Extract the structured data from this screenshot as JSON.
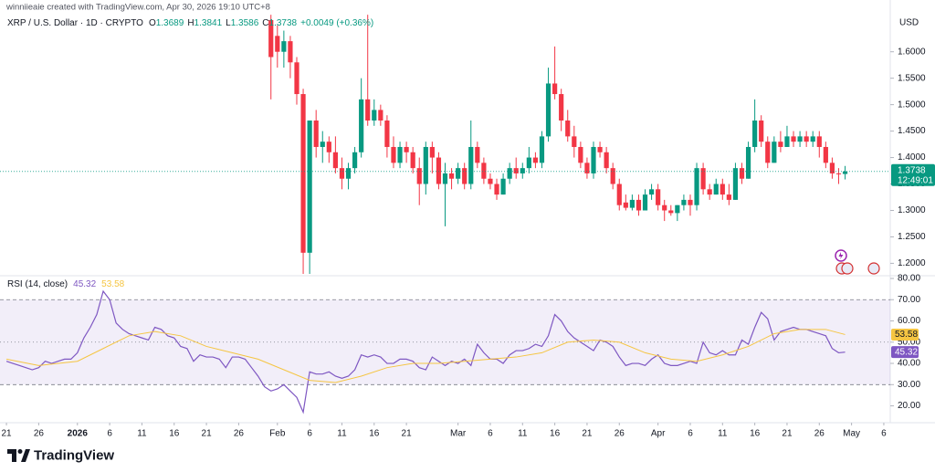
{
  "header": {
    "credit": "winniieaie created with TradingView.com, Apr 30, 2026 19:10 UTC+8"
  },
  "footer": {
    "brand": "TradingView"
  },
  "chart_data": [
    {
      "type": "candlestick",
      "title": "XRP / U.S. Dollar · 1D · CRYPTO",
      "ohlc_labels": [
        "O",
        "H",
        "L",
        "C"
      ],
      "change_label": "+0.0049 (+0.36%)",
      "currency": "USD",
      "countdown": "12:49:01",
      "up_color": "#089981",
      "down_color": "#f23645",
      "last_price_line": true,
      "xlim": [
        "2025-12-20",
        "2026-05-07"
      ],
      "ylim": [
        1.18,
        1.672
      ],
      "yticks": [
        {
          "value": 1.2,
          "label": "1.2000"
        },
        {
          "value": 1.25,
          "label": "1.2500"
        },
        {
          "value": 1.3,
          "label": "1.3000"
        },
        {
          "value": 1.35,
          "label": "1.3500"
        },
        {
          "value": 1.4,
          "label": "1.4000"
        },
        {
          "value": 1.45,
          "label": "1.4500"
        },
        {
          "value": 1.5,
          "label": "1.5000"
        },
        {
          "value": 1.55,
          "label": "1.5500"
        },
        {
          "value": 1.6,
          "label": "1.6000"
        }
      ],
      "x": [
        "2026-01-31",
        "2026-02-01",
        "2026-02-02",
        "2026-02-03",
        "2026-02-04",
        "2026-02-05",
        "2026-02-06",
        "2026-02-07",
        "2026-02-08",
        "2026-02-09",
        "2026-02-10",
        "2026-02-11",
        "2026-02-12",
        "2026-02-13",
        "2026-02-14",
        "2026-02-15",
        "2026-02-16",
        "2026-02-17",
        "2026-02-18",
        "2026-02-19",
        "2026-02-20",
        "2026-02-21",
        "2026-02-22",
        "2026-02-23",
        "2026-02-24",
        "2026-02-25",
        "2026-02-26",
        "2026-02-27",
        "2026-02-28",
        "2026-03-01",
        "2026-03-02",
        "2026-03-03",
        "2026-03-04",
        "2026-03-05",
        "2026-03-06",
        "2026-03-07",
        "2026-03-08",
        "2026-03-09",
        "2026-03-10",
        "2026-03-11",
        "2026-03-12",
        "2026-03-13",
        "2026-03-14",
        "2026-03-15",
        "2026-03-16",
        "2026-03-17",
        "2026-03-18",
        "2026-03-19",
        "2026-03-20",
        "2026-03-21",
        "2026-03-22",
        "2026-03-23",
        "2026-03-24",
        "2026-03-25",
        "2026-03-26",
        "2026-03-27",
        "2026-03-28",
        "2026-03-29",
        "2026-03-30",
        "2026-03-31",
        "2026-04-01",
        "2026-04-02",
        "2026-04-03",
        "2026-04-04",
        "2026-04-05",
        "2026-04-06",
        "2026-04-07",
        "2026-04-08",
        "2026-04-09",
        "2026-04-10",
        "2026-04-11",
        "2026-04-12",
        "2026-04-13",
        "2026-04-14",
        "2026-04-15",
        "2026-04-16",
        "2026-04-17",
        "2026-04-18",
        "2026-04-19",
        "2026-04-20",
        "2026-04-21",
        "2026-04-22",
        "2026-04-23",
        "2026-04-24",
        "2026-04-25",
        "2026-04-26",
        "2026-04-27",
        "2026-04-28",
        "2026-04-29",
        "2026-04-30"
      ],
      "open": [
        1.66,
        1.63,
        1.6,
        1.62,
        1.58,
        1.52,
        1.22,
        1.47,
        1.42,
        1.43,
        1.41,
        1.38,
        1.36,
        1.38,
        1.41,
        1.51,
        1.47,
        1.49,
        1.47,
        1.42,
        1.39,
        1.42,
        1.41,
        1.38,
        1.35,
        1.42,
        1.4,
        1.35,
        1.37,
        1.36,
        1.38,
        1.35,
        1.42,
        1.39,
        1.36,
        1.35,
        1.33,
        1.36,
        1.38,
        1.37,
        1.38,
        1.4,
        1.39,
        1.44,
        1.54,
        1.52,
        1.47,
        1.44,
        1.42,
        1.39,
        1.37,
        1.42,
        1.41,
        1.38,
        1.35,
        1.315,
        1.305,
        1.32,
        1.3,
        1.33,
        1.34,
        1.31,
        1.3,
        1.295,
        1.31,
        1.32,
        1.31,
        1.38,
        1.34,
        1.33,
        1.35,
        1.33,
        1.32,
        1.38,
        1.36,
        1.42,
        1.47,
        1.43,
        1.39,
        1.43,
        1.42,
        1.44,
        1.43,
        1.44,
        1.43,
        1.44,
        1.42,
        1.39,
        1.37,
        1.3689
      ],
      "high": [
        1.67,
        1.65,
        1.64,
        1.63,
        1.59,
        1.53,
        1.47,
        1.49,
        1.45,
        1.44,
        1.44,
        1.4,
        1.39,
        1.42,
        1.55,
        1.67,
        1.51,
        1.5,
        1.48,
        1.44,
        1.43,
        1.43,
        1.42,
        1.4,
        1.43,
        1.43,
        1.41,
        1.39,
        1.38,
        1.39,
        1.39,
        1.47,
        1.43,
        1.4,
        1.37,
        1.36,
        1.37,
        1.39,
        1.4,
        1.39,
        1.42,
        1.41,
        1.45,
        1.57,
        1.61,
        1.53,
        1.49,
        1.46,
        1.43,
        1.4,
        1.43,
        1.43,
        1.42,
        1.39,
        1.36,
        1.33,
        1.33,
        1.33,
        1.34,
        1.35,
        1.35,
        1.32,
        1.31,
        1.31,
        1.33,
        1.33,
        1.39,
        1.39,
        1.35,
        1.36,
        1.36,
        1.35,
        1.39,
        1.39,
        1.43,
        1.51,
        1.48,
        1.44,
        1.44,
        1.45,
        1.46,
        1.45,
        1.45,
        1.45,
        1.45,
        1.45,
        1.43,
        1.4,
        1.38,
        1.3841
      ],
      "low": [
        1.51,
        1.57,
        1.57,
        1.55,
        1.5,
        1.18,
        1.18,
        1.4,
        1.39,
        1.39,
        1.37,
        1.34,
        1.34,
        1.37,
        1.4,
        1.46,
        1.46,
        1.46,
        1.4,
        1.38,
        1.38,
        1.39,
        1.37,
        1.31,
        1.33,
        1.37,
        1.34,
        1.27,
        1.34,
        1.35,
        1.34,
        1.34,
        1.38,
        1.35,
        1.34,
        1.32,
        1.33,
        1.35,
        1.36,
        1.36,
        1.37,
        1.38,
        1.38,
        1.43,
        1.51,
        1.45,
        1.43,
        1.4,
        1.38,
        1.36,
        1.36,
        1.4,
        1.37,
        1.34,
        1.3,
        1.3,
        1.3,
        1.29,
        1.3,
        1.32,
        1.3,
        1.28,
        1.29,
        1.28,
        1.3,
        1.29,
        1.3,
        1.33,
        1.32,
        1.33,
        1.32,
        1.31,
        1.32,
        1.35,
        1.36,
        1.41,
        1.42,
        1.38,
        1.39,
        1.41,
        1.42,
        1.42,
        1.42,
        1.42,
        1.42,
        1.4,
        1.38,
        1.36,
        1.35,
        1.3586
      ],
      "close": [
        1.59,
        1.6,
        1.62,
        1.58,
        1.52,
        1.22,
        1.47,
        1.42,
        1.43,
        1.41,
        1.38,
        1.36,
        1.38,
        1.41,
        1.51,
        1.47,
        1.49,
        1.47,
        1.42,
        1.39,
        1.42,
        1.41,
        1.38,
        1.35,
        1.42,
        1.4,
        1.35,
        1.37,
        1.36,
        1.38,
        1.35,
        1.42,
        1.39,
        1.36,
        1.35,
        1.33,
        1.36,
        1.38,
        1.37,
        1.38,
        1.4,
        1.39,
        1.44,
        1.54,
        1.52,
        1.47,
        1.44,
        1.42,
        1.39,
        1.37,
        1.42,
        1.41,
        1.38,
        1.35,
        1.31,
        1.305,
        1.32,
        1.3,
        1.33,
        1.34,
        1.31,
        1.3,
        1.295,
        1.31,
        1.32,
        1.31,
        1.38,
        1.34,
        1.33,
        1.35,
        1.33,
        1.32,
        1.38,
        1.36,
        1.42,
        1.47,
        1.43,
        1.39,
        1.43,
        1.42,
        1.44,
        1.43,
        1.44,
        1.43,
        1.44,
        1.42,
        1.39,
        1.37,
        1.3689,
        1.3738
      ]
    },
    {
      "type": "line",
      "title": "RSI (14, close)",
      "xlim": [
        "2025-12-20",
        "2026-05-07"
      ],
      "ylim": [
        12.5,
        80
      ],
      "band": [
        30,
        70
      ],
      "midline": 50,
      "band_color": "#7e57c2",
      "yticks": [
        {
          "value": 20,
          "label": "20.00"
        },
        {
          "value": 30,
          "label": "30.00"
        },
        {
          "value": 40,
          "label": "40.00"
        },
        {
          "value": 50,
          "label": "50.00"
        },
        {
          "value": 60,
          "label": "60.00"
        },
        {
          "value": 70,
          "label": "70.00"
        },
        {
          "value": 80,
          "label": "80.00"
        }
      ],
      "xticks": [
        {
          "value": "2025-12-21",
          "label": "21"
        },
        {
          "value": "2025-12-26",
          "label": "26"
        },
        {
          "value": "2026-01-01",
          "label": "2026"
        },
        {
          "value": "2026-01-06",
          "label": "6"
        },
        {
          "value": "2026-01-11",
          "label": "11"
        },
        {
          "value": "2026-01-16",
          "label": "16"
        },
        {
          "value": "2026-01-21",
          "label": "21"
        },
        {
          "value": "2026-01-26",
          "label": "26"
        },
        {
          "value": "2026-02-01",
          "label": "Feb"
        },
        {
          "value": "2026-02-06",
          "label": "6"
        },
        {
          "value": "2026-02-11",
          "label": "11"
        },
        {
          "value": "2026-02-16",
          "label": "16"
        },
        {
          "value": "2026-02-21",
          "label": "21"
        },
        {
          "value": "2026-03-01",
          "label": "Mar"
        },
        {
          "value": "2026-03-06",
          "label": "6"
        },
        {
          "value": "2026-03-11",
          "label": "11"
        },
        {
          "value": "2026-03-16",
          "label": "16"
        },
        {
          "value": "2026-03-21",
          "label": "21"
        },
        {
          "value": "2026-03-26",
          "label": "26"
        },
        {
          "value": "2026-04-01",
          "label": "Apr"
        },
        {
          "value": "2026-04-06",
          "label": "6"
        },
        {
          "value": "2026-04-11",
          "label": "11"
        },
        {
          "value": "2026-04-16",
          "label": "16"
        },
        {
          "value": "2026-04-21",
          "label": "21"
        },
        {
          "value": "2026-04-26",
          "label": "26"
        },
        {
          "value": "2026-05-01",
          "label": "May"
        },
        {
          "value": "2026-05-06",
          "label": "6"
        }
      ],
      "x": [
        "2025-12-21",
        "2025-12-22",
        "2025-12-23",
        "2025-12-24",
        "2025-12-25",
        "2025-12-26",
        "2025-12-27",
        "2025-12-28",
        "2025-12-29",
        "2025-12-30",
        "2025-12-31",
        "2026-01-01",
        "2026-01-02",
        "2026-01-03",
        "2026-01-04",
        "2026-01-05",
        "2026-01-06",
        "2026-01-07",
        "2026-01-08",
        "2026-01-09",
        "2026-01-10",
        "2026-01-11",
        "2026-01-12",
        "2026-01-13",
        "2026-01-14",
        "2026-01-15",
        "2026-01-16",
        "2026-01-17",
        "2026-01-18",
        "2026-01-19",
        "2026-01-20",
        "2026-01-21",
        "2026-01-22",
        "2026-01-23",
        "2026-01-24",
        "2026-01-25",
        "2026-01-26",
        "2026-01-27",
        "2026-01-28",
        "2026-01-29",
        "2026-01-30",
        "2026-01-31",
        "2026-02-01",
        "2026-02-02",
        "2026-02-03",
        "2026-02-04",
        "2026-02-05",
        "2026-02-06",
        "2026-02-07",
        "2026-02-08",
        "2026-02-09",
        "2026-02-10",
        "2026-02-11",
        "2026-02-12",
        "2026-02-13",
        "2026-02-14",
        "2026-02-15",
        "2026-02-16",
        "2026-02-17",
        "2026-02-18",
        "2026-02-19",
        "2026-02-20",
        "2026-02-21",
        "2026-02-22",
        "2026-02-23",
        "2026-02-24",
        "2026-02-25",
        "2026-02-26",
        "2026-02-27",
        "2026-02-28",
        "2026-03-01",
        "2026-03-02",
        "2026-03-03",
        "2026-03-04",
        "2026-03-05",
        "2026-03-06",
        "2026-03-07",
        "2026-03-08",
        "2026-03-09",
        "2026-03-10",
        "2026-03-11",
        "2026-03-12",
        "2026-03-13",
        "2026-03-14",
        "2026-03-15",
        "2026-03-16",
        "2026-03-17",
        "2026-03-18",
        "2026-03-19",
        "2026-03-20",
        "2026-03-21",
        "2026-03-22",
        "2026-03-23",
        "2026-03-24",
        "2026-03-25",
        "2026-03-26",
        "2026-03-27",
        "2026-03-28",
        "2026-03-29",
        "2026-03-30",
        "2026-03-31",
        "2026-04-01",
        "2026-04-02",
        "2026-04-03",
        "2026-04-04",
        "2026-04-05",
        "2026-04-06",
        "2026-04-07",
        "2026-04-08",
        "2026-04-09",
        "2026-04-10",
        "2026-04-11",
        "2026-04-12",
        "2026-04-13",
        "2026-04-14",
        "2026-04-15",
        "2026-04-16",
        "2026-04-17",
        "2026-04-18",
        "2026-04-19",
        "2026-04-20",
        "2026-04-21",
        "2026-04-22",
        "2026-04-23",
        "2026-04-24",
        "2026-04-25",
        "2026-04-26",
        "2026-04-27",
        "2026-04-28",
        "2026-04-29",
        "2026-04-30"
      ],
      "series": [
        {
          "color": "#7e57c2",
          "label_text_color": "#ffffff",
          "values": [
            41,
            40,
            39,
            38,
            37,
            38,
            41,
            40,
            41,
            42,
            42,
            45,
            52,
            57,
            63,
            74,
            70,
            59,
            56,
            54,
            53,
            52,
            51,
            57,
            56,
            53,
            52,
            48,
            47,
            41,
            44,
            43,
            43,
            42,
            38,
            43,
            43,
            42,
            38,
            34,
            29,
            27,
            28,
            30,
            27,
            24,
            17,
            36,
            35,
            35,
            36,
            34,
            33,
            34,
            37,
            44,
            43,
            44,
            43,
            40,
            40,
            42,
            42,
            41,
            38,
            37,
            43,
            41,
            39,
            41,
            40,
            42,
            39,
            49,
            45,
            42,
            42,
            40,
            44,
            46,
            46,
            47,
            49,
            48,
            53,
            63,
            60,
            55,
            52,
            50,
            48,
            46,
            51,
            50,
            48,
            43,
            39,
            40,
            40,
            39,
            42,
            44,
            40,
            39,
            39,
            40,
            41,
            40,
            50,
            45,
            44,
            46,
            44,
            44,
            51,
            49,
            57,
            64,
            61,
            51,
            55,
            56,
            57,
            56,
            56,
            55,
            54,
            53,
            47,
            45,
            45.32
          ]
        },
        {
          "color": "#f5c542",
          "label_text_color": "#131722",
          "x": [
            "2025-12-21",
            "2025-12-26",
            "2026-01-01",
            "2026-01-05",
            "2026-01-09",
            "2026-01-13",
            "2026-01-17",
            "2026-01-21",
            "2026-01-25",
            "2026-01-29",
            "2026-02-02",
            "2026-02-06",
            "2026-02-10",
            "2026-02-14",
            "2026-02-18",
            "2026-02-22",
            "2026-02-26",
            "2026-03-02",
            "2026-03-06",
            "2026-03-10",
            "2026-03-14",
            "2026-03-18",
            "2026-03-22",
            "2026-03-26",
            "2026-03-30",
            "2026-04-03",
            "2026-04-07",
            "2026-04-11",
            "2026-04-15",
            "2026-04-19",
            "2026-04-23",
            "2026-04-27",
            "2026-04-30"
          ],
          "values": [
            42,
            39,
            41,
            47,
            53,
            55,
            53,
            48,
            45,
            42,
            37,
            32,
            31,
            34,
            38,
            40,
            40,
            41,
            42,
            43,
            45,
            50,
            51,
            50,
            45,
            42,
            41,
            44,
            48,
            54,
            56,
            56,
            53.58
          ]
        }
      ]
    }
  ]
}
